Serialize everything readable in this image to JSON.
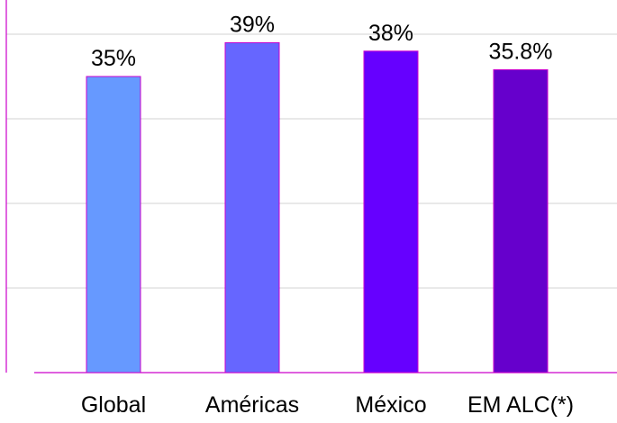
{
  "chart_data": {
    "type": "bar",
    "categories": [
      "Global",
      "Américas",
      "México",
      "EM ALC(*)"
    ],
    "values": [
      35,
      39,
      38,
      35.8
    ],
    "data_labels": [
      "35%",
      "39%",
      "38%",
      "35.8%"
    ],
    "title": "",
    "xlabel": "",
    "ylabel": "",
    "ylim": [
      0,
      40
    ],
    "grid": true,
    "legend": "none",
    "colors": [
      "#6699FF",
      "#6666FF",
      "#6600FF",
      "#6600CC"
    ],
    "edge_color": "#CC00CC",
    "axis_color": "#CC00CC",
    "grid_color": "#D3D3D3"
  }
}
